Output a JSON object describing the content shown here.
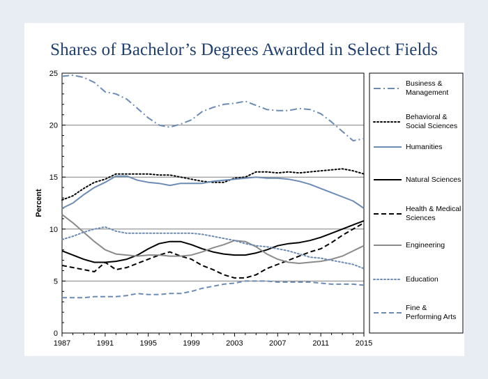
{
  "page": {
    "title": "Shares of Bachelor’s Degrees Awarded in Select Fields"
  },
  "chart_data": {
    "type": "line",
    "title": "Shares of Bachelor’s Degrees Awarded in Select Fields",
    "xlabel": "",
    "ylabel": "Percent",
    "xlim": [
      1987,
      2015
    ],
    "ylim": [
      0,
      25
    ],
    "x_ticks": [
      "1987",
      "1991",
      "1995",
      "1999",
      "2003",
      "2007",
      "2011",
      "2015"
    ],
    "y_ticks": [
      "0",
      "5",
      "10",
      "15",
      "20",
      "25"
    ],
    "grid": "horizontal",
    "legend_placement": "right",
    "x": [
      1987,
      1988,
      1989,
      1990,
      1991,
      1992,
      1993,
      1994,
      1995,
      1996,
      1997,
      1998,
      1999,
      2000,
      2001,
      2002,
      2003,
      2004,
      2005,
      2006,
      2007,
      2008,
      2009,
      2010,
      2011,
      2012,
      2013,
      2014,
      2015
    ],
    "series": [
      {
        "name": "Business & Management",
        "legend_lines": [
          "Business &",
          "Management"
        ],
        "color": "#6b8bb5",
        "dash": "dashdot",
        "values": [
          24.7,
          24.8,
          24.6,
          24.1,
          23.2,
          23.0,
          22.5,
          21.6,
          20.7,
          20.0,
          19.8,
          20.1,
          20.5,
          21.3,
          21.7,
          22.0,
          22.1,
          22.3,
          21.9,
          21.5,
          21.4,
          21.4,
          21.6,
          21.5,
          21.1,
          20.3,
          19.4,
          18.5,
          18.7
        ]
      },
      {
        "name": "Behavioral & Social Sciences",
        "legend_lines": [
          "Behavioral &",
          "Social Sciences"
        ],
        "color": "#000000",
        "dash": "dotted",
        "values": [
          12.8,
          13.2,
          13.9,
          14.5,
          14.8,
          15.3,
          15.3,
          15.3,
          15.3,
          15.2,
          15.2,
          15.0,
          14.8,
          14.6,
          14.5,
          14.5,
          14.9,
          15.0,
          15.5,
          15.5,
          15.4,
          15.5,
          15.4,
          15.5,
          15.6,
          15.7,
          15.8,
          15.6,
          15.3
        ]
      },
      {
        "name": "Humanities",
        "legend_lines": [
          "Humanities"
        ],
        "color": "#6b8bb5",
        "dash": "solid",
        "values": [
          12.0,
          12.5,
          13.3,
          14.0,
          14.5,
          15.1,
          15.1,
          14.7,
          14.5,
          14.4,
          14.2,
          14.4,
          14.4,
          14.4,
          14.6,
          14.7,
          14.8,
          14.9,
          15.0,
          14.9,
          14.9,
          14.8,
          14.6,
          14.3,
          13.9,
          13.5,
          13.1,
          12.7,
          12.0
        ]
      },
      {
        "name": "Natural Sciences",
        "legend_lines": [
          "Natural Sciences"
        ],
        "color": "#000000",
        "dash": "solid",
        "values": [
          7.9,
          7.5,
          7.1,
          6.8,
          6.8,
          6.9,
          7.1,
          7.5,
          8.1,
          8.6,
          8.8,
          8.8,
          8.5,
          8.1,
          7.8,
          7.6,
          7.5,
          7.5,
          7.7,
          8.0,
          8.4,
          8.6,
          8.7,
          8.9,
          9.2,
          9.6,
          10.0,
          10.4,
          10.8
        ]
      },
      {
        "name": "Health & Medical Sciences",
        "legend_lines": [
          "Health & Medical",
          "Sciences"
        ],
        "color": "#000000",
        "dash": "dashed",
        "values": [
          6.5,
          6.3,
          6.1,
          5.9,
          6.8,
          6.1,
          6.3,
          6.7,
          7.1,
          7.5,
          7.8,
          7.4,
          7.1,
          6.5,
          6.1,
          5.6,
          5.3,
          5.3,
          5.6,
          6.2,
          6.6,
          7.0,
          7.4,
          7.8,
          8.1,
          8.7,
          9.4,
          10.0,
          10.6
        ]
      },
      {
        "name": "Engineering",
        "legend_lines": [
          "Engineering"
        ],
        "color": "#8a8a8a",
        "dash": "solid",
        "values": [
          11.4,
          10.6,
          9.7,
          8.8,
          8.0,
          7.6,
          7.5,
          7.4,
          7.5,
          7.5,
          7.4,
          7.4,
          7.5,
          7.8,
          8.2,
          8.5,
          8.9,
          8.8,
          8.3,
          7.6,
          7.1,
          6.8,
          6.7,
          6.8,
          6.9,
          7.1,
          7.4,
          7.9,
          8.4
        ]
      },
      {
        "name": "Education",
        "legend_lines": [
          "Education"
        ],
        "color": "#6b8bb5",
        "dash": "dotted",
        "values": [
          9.0,
          9.3,
          9.7,
          10.0,
          10.2,
          9.8,
          9.6,
          9.6,
          9.6,
          9.6,
          9.6,
          9.6,
          9.6,
          9.5,
          9.3,
          9.1,
          8.9,
          8.6,
          8.4,
          8.3,
          8.1,
          7.9,
          7.6,
          7.3,
          7.2,
          7.0,
          6.8,
          6.6,
          6.2
        ]
      },
      {
        "name": "Fine & Performing Arts",
        "legend_lines": [
          "Fine &",
          "Performing Arts"
        ],
        "color": "#6b8bb5",
        "dash": "dashed",
        "values": [
          3.4,
          3.4,
          3.4,
          3.5,
          3.5,
          3.5,
          3.6,
          3.8,
          3.7,
          3.7,
          3.8,
          3.8,
          4.0,
          4.3,
          4.5,
          4.7,
          4.8,
          5.0,
          5.0,
          5.0,
          4.9,
          4.9,
          4.9,
          4.9,
          4.8,
          4.7,
          4.7,
          4.7,
          4.6
        ]
      }
    ]
  }
}
